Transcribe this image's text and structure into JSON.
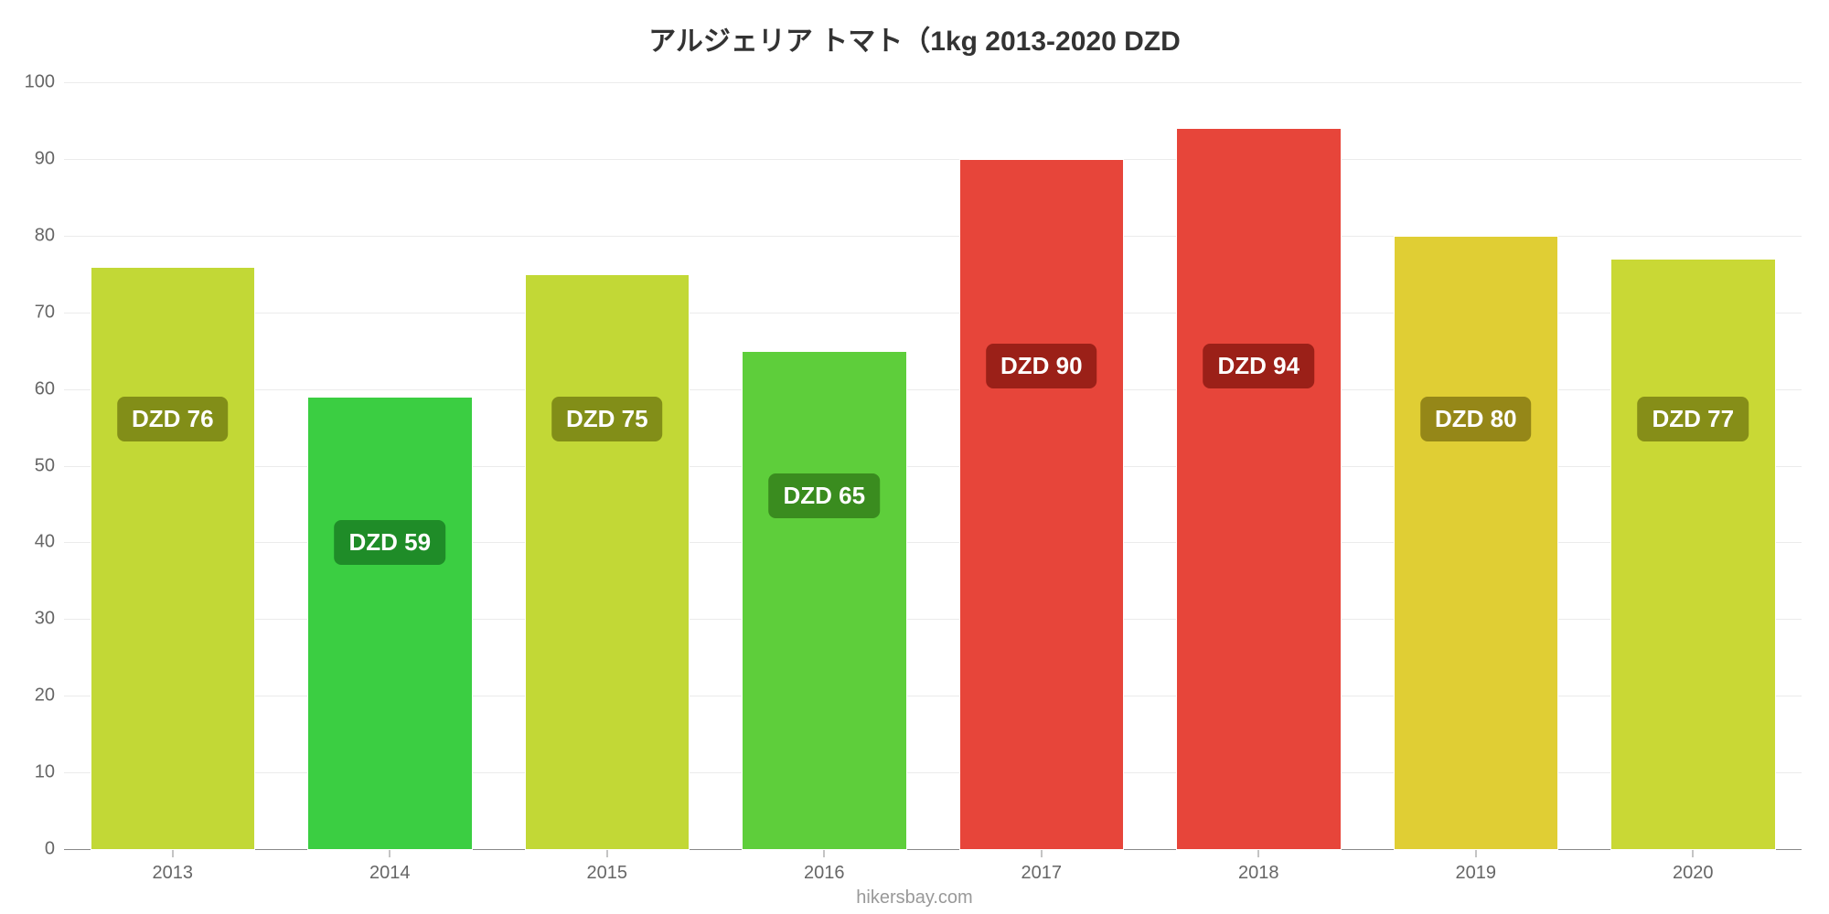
{
  "chart": {
    "type": "bar",
    "title": "アルジェリア トマト（1kg 2013-2020 DZD",
    "title_fontsize": 30,
    "title_color": "#333333",
    "attribution": "hikersbay.com",
    "attribution_fontsize": 20,
    "background_color": "#ffffff",
    "grid_color": "rgba(120,120,120,0.15)",
    "axis_color": "#888888",
    "ylim": [
      0,
      100
    ],
    "ytick_step": 10,
    "yticks": [
      0,
      10,
      20,
      30,
      40,
      50,
      60,
      70,
      80,
      90,
      100
    ],
    "yaxis_fontsize": 20,
    "xaxis_fontsize": 20,
    "label_fontsize": 26,
    "bar_width_pct": 76,
    "bars": [
      {
        "category": "2013",
        "value": 76,
        "label": "DZD 76",
        "fill": "#c2d836",
        "label_bg": "#828e18",
        "label_top_pct": 41
      },
      {
        "category": "2014",
        "value": 59,
        "label": "DZD 59",
        "fill": "#3bce42",
        "label_bg": "#1f8c28",
        "label_top_pct": 57
      },
      {
        "category": "2015",
        "value": 75,
        "label": "DZD 75",
        "fill": "#c2d836",
        "label_bg": "#828e18",
        "label_top_pct": 41
      },
      {
        "category": "2016",
        "value": 65,
        "label": "DZD 65",
        "fill": "#5ece3b",
        "label_bg": "#3a8c1f",
        "label_top_pct": 51
      },
      {
        "category": "2017",
        "value": 90,
        "label": "DZD 90",
        "fill": "#e7453a",
        "label_bg": "#9b2018",
        "label_top_pct": 34
      },
      {
        "category": "2018",
        "value": 94,
        "label": "DZD 94",
        "fill": "#e7453a",
        "label_bg": "#9b2018",
        "label_top_pct": 34
      },
      {
        "category": "2019",
        "value": 80,
        "label": "DZD 80",
        "fill": "#e0ce34",
        "label_bg": "#958718",
        "label_top_pct": 41
      },
      {
        "category": "2020",
        "value": 77,
        "label": "DZD 77",
        "fill": "#c9d835",
        "label_bg": "#868e18",
        "label_top_pct": 41
      }
    ]
  }
}
